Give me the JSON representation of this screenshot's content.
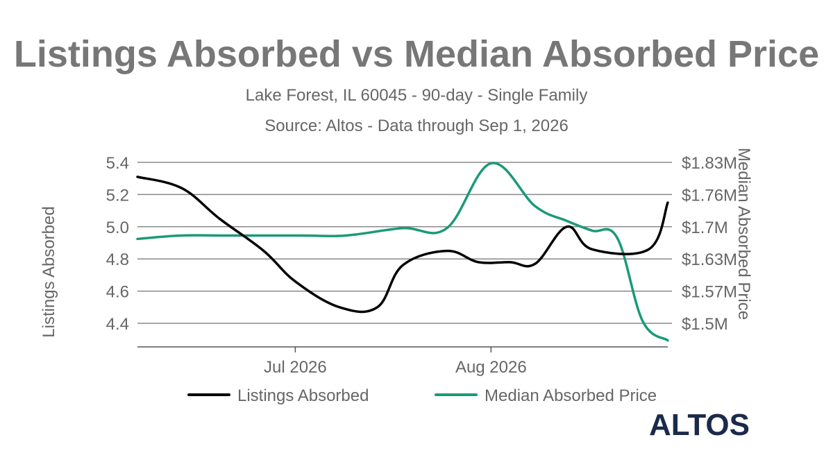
{
  "chart_data": {
    "type": "line",
    "title": "Listings Absorbed vs Median Absorbed Price",
    "subtitle_lines": [
      "Lake Forest, IL 60045 - 90-day - Single Family",
      "Source: Altos - Data through Sep 1, 2026"
    ],
    "x_ticks": [
      {
        "label": "Jul 2026",
        "date": "2026-07-01"
      },
      {
        "label": "Aug 2026",
        "date": "2026-08-01"
      }
    ],
    "x_range": [
      "2026-06-06",
      "2026-08-29"
    ],
    "y_left": {
      "label": "Listings Absorbed",
      "ticks": [
        "5.4",
        "5.2",
        "5.0",
        "4.8",
        "4.6",
        "4.4"
      ],
      "range": [
        4.25,
        5.45
      ]
    },
    "y_right": {
      "label": "Median Absorbed Price",
      "ticks": [
        "$1.83M",
        "$1.76M",
        "$1.7M",
        "$1.63M",
        "$1.57M",
        "$1.5M"
      ],
      "range": [
        1.455,
        1.83
      ]
    },
    "grid": true,
    "legend_position": "bottom",
    "series": [
      {
        "name": "Listings Absorbed",
        "axis": "left",
        "color": "#000000",
        "points": [
          [
            "2026-06-06",
            5.31
          ],
          [
            "2026-06-13",
            5.24
          ],
          [
            "2026-06-19",
            5.05
          ],
          [
            "2026-06-26",
            4.85
          ],
          [
            "2026-07-01",
            4.66
          ],
          [
            "2026-07-08",
            4.5
          ],
          [
            "2026-07-14",
            4.5
          ],
          [
            "2026-07-18",
            4.76
          ],
          [
            "2026-07-25",
            4.85
          ],
          [
            "2026-07-30",
            4.78
          ],
          [
            "2026-08-04",
            4.78
          ],
          [
            "2026-08-08",
            4.77
          ],
          [
            "2026-08-13",
            5.0
          ],
          [
            "2026-08-17",
            4.86
          ],
          [
            "2026-08-26",
            4.86
          ],
          [
            "2026-08-29",
            5.15
          ]
        ]
      },
      {
        "name": "Median Absorbed Price",
        "axis": "right",
        "color": "#1a9a78",
        "points": [
          [
            "2026-06-06",
            1.673
          ],
          [
            "2026-06-13",
            1.68
          ],
          [
            "2026-06-20",
            1.68
          ],
          [
            "2026-07-02",
            1.68
          ],
          [
            "2026-07-09",
            1.68
          ],
          [
            "2026-07-18",
            1.695
          ],
          [
            "2026-07-25",
            1.695
          ],
          [
            "2026-08-01",
            1.828
          ],
          [
            "2026-08-08",
            1.74
          ],
          [
            "2026-08-13",
            1.71
          ],
          [
            "2026-08-17",
            1.69
          ],
          [
            "2026-08-21",
            1.675
          ],
          [
            "2026-08-25",
            1.505
          ],
          [
            "2026-08-29",
            1.465
          ]
        ]
      }
    ]
  },
  "logo": {
    "text": "ALTOS",
    "color": "#1b2a4a"
  }
}
